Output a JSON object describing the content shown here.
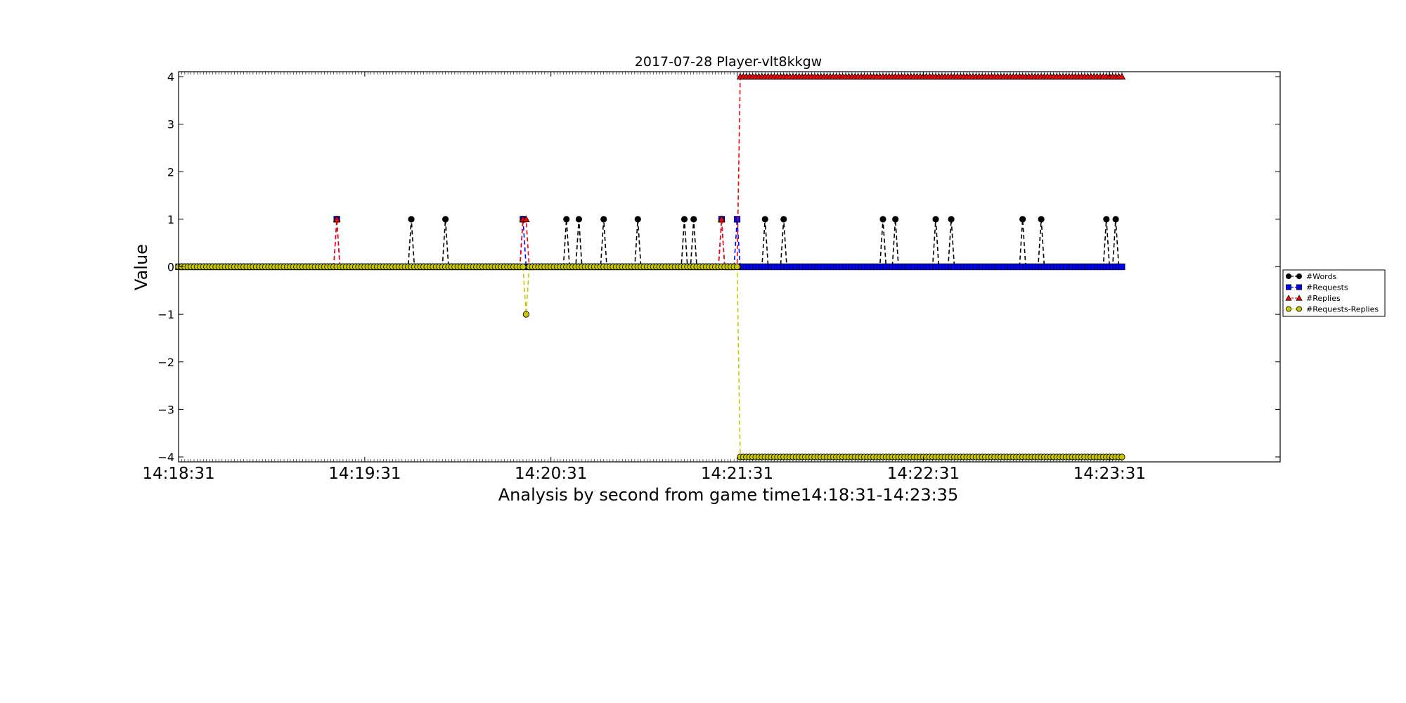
{
  "chart_data": {
    "type": "line",
    "title": "2017-07-28 Player-vlt8kkgw",
    "xlabel": "Analysis by second from game time14:18:31-14:23:35",
    "ylabel": "Value",
    "x_unit": "time (HH:MM:SS), 1-second steps",
    "xlim": [
      "14:18:31",
      "14:24:26"
    ],
    "x_range_data": [
      "14:18:31",
      "14:23:35"
    ],
    "ylim": [
      -4,
      4
    ],
    "yticks": [
      4,
      3,
      2,
      1,
      0,
      -1,
      -2,
      -3,
      -4
    ],
    "ytick_labels": [
      "4",
      "3",
      "2",
      "1",
      "0",
      "−1",
      "−2",
      "−3",
      "−4"
    ],
    "xticks": [
      "14:18:31",
      "14:19:31",
      "14:20:31",
      "14:21:31",
      "14:22:31",
      "14:23:31"
    ],
    "grid": false,
    "legend_position": "right, outside plot area",
    "series": [
      {
        "name": "#Words",
        "color": "#000000",
        "marker": "circle",
        "linestyle": "dashed",
        "baseline": 0,
        "points": [
          [
            "14:19:46",
            1
          ],
          [
            "14:19:57",
            1
          ],
          [
            "14:20:36",
            1
          ],
          [
            "14:20:40",
            1
          ],
          [
            "14:20:48",
            1
          ],
          [
            "14:20:59",
            1
          ],
          [
            "14:21:14",
            1
          ],
          [
            "14:21:17",
            1
          ],
          [
            "14:21:40",
            1
          ],
          [
            "14:21:46",
            1
          ],
          [
            "14:22:18",
            1
          ],
          [
            "14:22:22",
            1
          ],
          [
            "14:22:35",
            1
          ],
          [
            "14:22:40",
            1
          ],
          [
            "14:23:03",
            1
          ],
          [
            "14:23:09",
            1
          ],
          [
            "14:23:30",
            1
          ],
          [
            "14:23:33",
            1
          ]
        ]
      },
      {
        "name": "#Requests",
        "color": "#0000ff",
        "marker": "square",
        "linestyle": "dashed",
        "baseline": 0,
        "points": [
          [
            "14:19:22",
            1
          ],
          [
            "14:20:22",
            1
          ],
          [
            "14:21:26",
            1
          ],
          [
            "14:21:31",
            1
          ]
        ]
      },
      {
        "name": "#Replies",
        "color": "#ff0000",
        "marker": "triangle",
        "linestyle": "dashed",
        "baseline": 0,
        "points": [
          [
            "14:19:22",
            1
          ],
          [
            "14:20:22",
            1
          ],
          [
            "14:20:23",
            1
          ],
          [
            "14:21:26",
            1
          ]
        ],
        "step": {
          "from": "14:21:32",
          "to": "14:23:35",
          "value": 4
        }
      },
      {
        "name": "#Requests-Replies",
        "color": "#c8c800",
        "marker": "circle",
        "linestyle": "dashed",
        "baseline": 0,
        "points": [
          [
            "14:20:23",
            -1
          ]
        ],
        "step": {
          "from": "14:21:32",
          "to": "14:23:35",
          "value": -4
        }
      }
    ]
  }
}
